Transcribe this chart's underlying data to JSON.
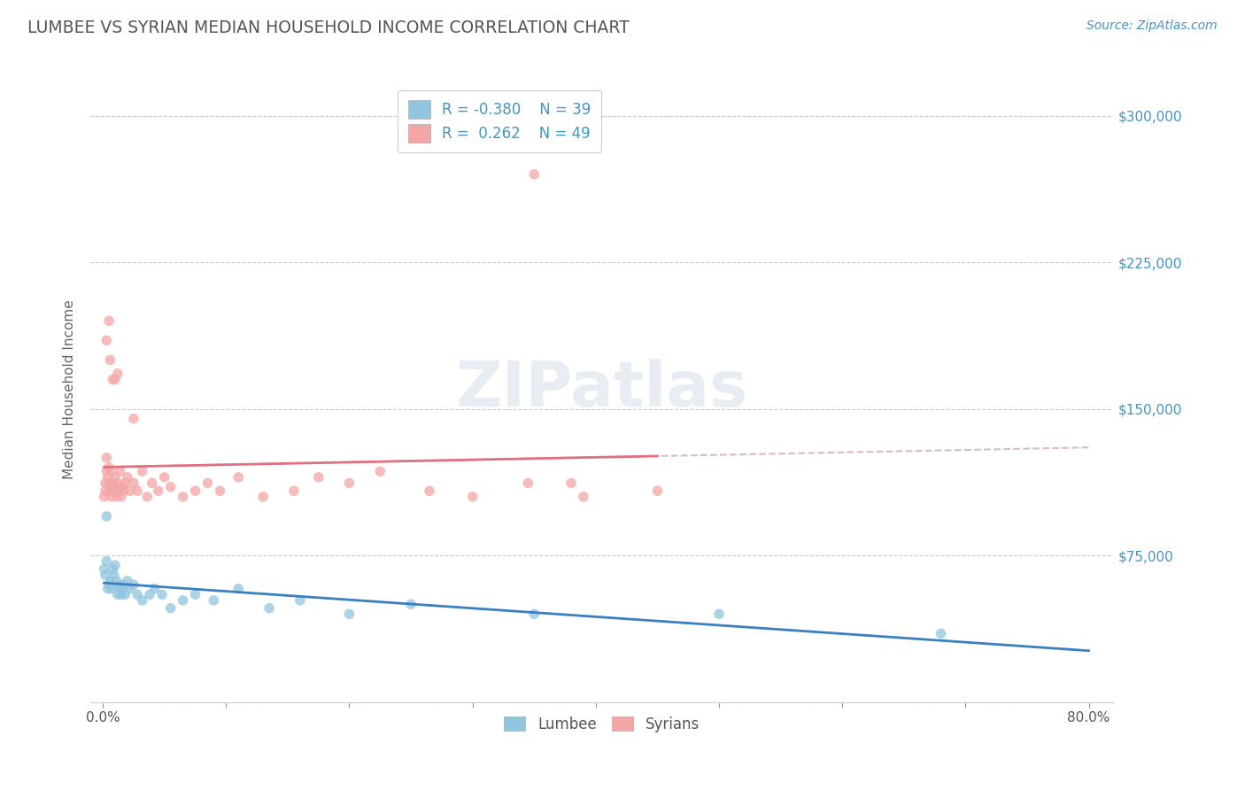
{
  "title": "LUMBEE VS SYRIAN MEDIAN HOUSEHOLD INCOME CORRELATION CHART",
  "source_text": "Source: ZipAtlas.com",
  "ylabel": "Median Household Income",
  "xlim": [
    -0.01,
    0.82
  ],
  "ylim": [
    0,
    320000
  ],
  "yticks": [
    0,
    75000,
    150000,
    225000,
    300000
  ],
  "ytick_labels": [
    "",
    "$75,000",
    "$150,000",
    "$225,000",
    "$300,000"
  ],
  "xtick_labels": [
    "0.0%",
    "",
    "",
    "",
    "",
    "",
    "",
    "",
    "80.0%"
  ],
  "xticks": [
    0.0,
    0.1,
    0.2,
    0.3,
    0.4,
    0.5,
    0.6,
    0.7,
    0.8
  ],
  "lumbee_color": "#92c5de",
  "syrian_color": "#f4a6a6",
  "lumbee_line_color": "#3a7fc1",
  "syrian_line_color": "#e07080",
  "syrian_dash_color": "#d0a0a8",
  "r_lumbee": -0.38,
  "n_lumbee": 39,
  "r_syrian": 0.262,
  "n_syrian": 49,
  "background_color": "#ffffff",
  "grid_color": "#cccccc",
  "ylabel_color": "#666666",
  "ytick_color": "#4393c3",
  "title_color": "#555555",
  "lumbee_scatter_x": [
    0.001,
    0.002,
    0.003,
    0.003,
    0.004,
    0.005,
    0.006,
    0.007,
    0.008,
    0.009,
    0.01,
    0.011,
    0.012,
    0.013,
    0.014,
    0.015,
    0.016,
    0.017,
    0.018,
    0.02,
    0.022,
    0.025,
    0.028,
    0.032,
    0.038,
    0.042,
    0.048,
    0.055,
    0.065,
    0.075,
    0.09,
    0.11,
    0.135,
    0.16,
    0.2,
    0.25,
    0.35,
    0.5,
    0.68
  ],
  "lumbee_scatter_y": [
    68000,
    65000,
    72000,
    95000,
    58000,
    60000,
    62000,
    58000,
    68000,
    65000,
    70000,
    62000,
    55000,
    58000,
    60000,
    55000,
    58000,
    60000,
    55000,
    62000,
    58000,
    60000,
    55000,
    52000,
    55000,
    58000,
    55000,
    48000,
    52000,
    55000,
    52000,
    58000,
    48000,
    52000,
    45000,
    50000,
    45000,
    45000,
    35000
  ],
  "syrian_scatter_x": [
    0.001,
    0.002,
    0.002,
    0.003,
    0.003,
    0.004,
    0.005,
    0.005,
    0.006,
    0.007,
    0.007,
    0.008,
    0.009,
    0.01,
    0.01,
    0.011,
    0.012,
    0.013,
    0.014,
    0.015,
    0.016,
    0.017,
    0.018,
    0.02,
    0.022,
    0.025,
    0.028,
    0.032,
    0.036,
    0.04,
    0.045,
    0.05,
    0.055,
    0.065,
    0.075,
    0.085,
    0.095,
    0.11,
    0.13,
    0.155,
    0.175,
    0.2,
    0.225,
    0.265,
    0.3,
    0.345,
    0.39,
    0.45,
    0.38
  ],
  "syrian_scatter_y": [
    105000,
    108000,
    112000,
    125000,
    118000,
    115000,
    112000,
    120000,
    108000,
    118000,
    105000,
    112000,
    108000,
    115000,
    110000,
    105000,
    112000,
    108000,
    118000,
    105000,
    110000,
    108000,
    112000,
    115000,
    108000,
    112000,
    108000,
    118000,
    105000,
    112000,
    108000,
    115000,
    110000,
    105000,
    108000,
    112000,
    108000,
    115000,
    105000,
    108000,
    115000,
    112000,
    118000,
    108000,
    105000,
    112000,
    105000,
    108000,
    112000
  ],
  "syrian_outlier_x": [
    0.35
  ],
  "syrian_outlier_y": [
    270000
  ],
  "syrian_high_x": [
    0.003,
    0.005,
    0.006,
    0.008,
    0.01,
    0.012,
    0.025
  ],
  "syrian_high_y": [
    185000,
    195000,
    175000,
    165000,
    165000,
    168000,
    145000
  ]
}
